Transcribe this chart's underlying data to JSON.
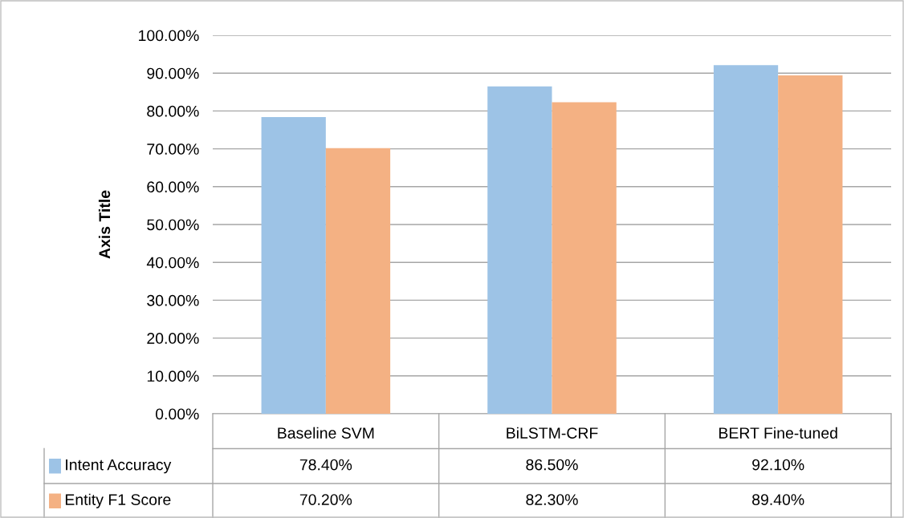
{
  "chart_data": {
    "type": "bar",
    "categories": [
      "Baseline SVM",
      "BiLSTM-CRF",
      "BERT Fine-tuned"
    ],
    "series": [
      {
        "name": "Intent Accuracy",
        "color": "#9dc3e6",
        "values": [
          78.4,
          86.5,
          92.1
        ],
        "value_labels": [
          "78.40%",
          "86.50%",
          "92.10%"
        ]
      },
      {
        "name": "Entity F1 Score",
        "color": "#f4b183",
        "values": [
          70.2,
          82.3,
          89.4
        ],
        "value_labels": [
          "70.20%",
          "82.30%",
          "89.40%"
        ]
      }
    ],
    "ylabel": "Axis Title",
    "ylim": [
      0,
      100
    ],
    "yticks": [
      {
        "value": 0,
        "label": "0.00%"
      },
      {
        "value": 10,
        "label": "10.00%"
      },
      {
        "value": 20,
        "label": "20.00%"
      },
      {
        "value": 30,
        "label": "30.00%"
      },
      {
        "value": 40,
        "label": "40.00%"
      },
      {
        "value": 50,
        "label": "50.00%"
      },
      {
        "value": 60,
        "label": "60.00%"
      },
      {
        "value": 70,
        "label": "70.00%"
      },
      {
        "value": 80,
        "label": "80.00%"
      },
      {
        "value": 90,
        "label": "90.00%"
      },
      {
        "value": 100,
        "label": "100.00%"
      }
    ],
    "grid": "y",
    "legend": "bottom"
  }
}
